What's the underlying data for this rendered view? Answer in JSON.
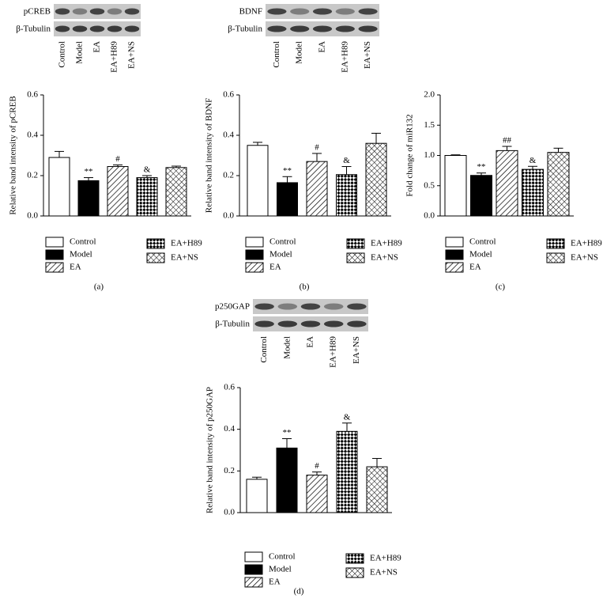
{
  "chart_data": [
    {
      "type": "bar",
      "panel": "(a)",
      "ylabel": "Relative band intensity of pCREB",
      "blot_labels": [
        "pCREB",
        "β-Tubulin"
      ],
      "categories": [
        "Control",
        "Model",
        "EA",
        "EA+H89",
        "EA+NS"
      ],
      "values": [
        0.29,
        0.175,
        0.245,
        0.19,
        0.24
      ],
      "errors": [
        0.03,
        0.015,
        0.008,
        0.01,
        0.007
      ],
      "annotations": [
        null,
        "**",
        "#",
        "&",
        null
      ],
      "fills": [
        "white",
        "black",
        "hatch",
        "checker",
        "cross"
      ],
      "ylim": [
        0,
        0.6
      ],
      "yticks": [
        {
          "value": 0,
          "label": "0.0"
        },
        {
          "value": 0.2,
          "label": "0.2"
        },
        {
          "value": 0.4,
          "label": "0.4"
        },
        {
          "value": 0.6,
          "label": "0.6"
        }
      ]
    },
    {
      "type": "bar",
      "panel": "(b)",
      "ylabel": "Relative band intensity of BDNF",
      "blot_labels": [
        "BDNF",
        "β-Tubulin"
      ],
      "categories": [
        "Control",
        "Model",
        "EA",
        "EA+H89",
        "EA+NS"
      ],
      "values": [
        0.35,
        0.165,
        0.27,
        0.205,
        0.36
      ],
      "errors": [
        0.015,
        0.03,
        0.04,
        0.04,
        0.05
      ],
      "annotations": [
        null,
        "**",
        "#",
        "&",
        null
      ],
      "fills": [
        "white",
        "black",
        "hatch",
        "checker",
        "cross"
      ],
      "ylim": [
        0,
        0.6
      ],
      "yticks": [
        {
          "value": 0,
          "label": "0.0"
        },
        {
          "value": 0.2,
          "label": "0.2"
        },
        {
          "value": 0.4,
          "label": "0.4"
        },
        {
          "value": 0.6,
          "label": "0.6"
        }
      ]
    },
    {
      "type": "bar",
      "panel": "(c)",
      "ylabel": "Fold change of miR132",
      "categories": [
        "Control",
        "Model",
        "EA",
        "EA+H89",
        "EA+NS"
      ],
      "values": [
        1.0,
        0.67,
        1.08,
        0.77,
        1.05
      ],
      "errors": [
        0.01,
        0.04,
        0.07,
        0.05,
        0.07
      ],
      "annotations": [
        null,
        "**",
        "##",
        "&",
        null
      ],
      "fills": [
        "white",
        "black",
        "hatch",
        "checker",
        "cross"
      ],
      "ylim": [
        0,
        2
      ],
      "yticks": [
        {
          "value": 0,
          "label": "0.0"
        },
        {
          "value": 0.5,
          "label": "0.5"
        },
        {
          "value": 1,
          "label": "1.0"
        },
        {
          "value": 1.5,
          "label": "1.5"
        },
        {
          "value": 2,
          "label": "2.0"
        }
      ]
    },
    {
      "type": "bar",
      "panel": "(d)",
      "ylabel": "Relative band intensity of p250GAP",
      "blot_labels": [
        "p250GAP",
        "β-Tubulin"
      ],
      "categories": [
        "Control",
        "Model",
        "EA",
        "EA+H89",
        "EA+NS"
      ],
      "values": [
        0.16,
        0.31,
        0.18,
        0.39,
        0.22
      ],
      "errors": [
        0.01,
        0.045,
        0.015,
        0.04,
        0.04
      ],
      "annotations": [
        null,
        "**",
        "#",
        "&",
        null
      ],
      "fills": [
        "white",
        "black",
        "hatch",
        "checker",
        "cross"
      ],
      "ylim": [
        0,
        0.6
      ],
      "yticks": [
        {
          "value": 0,
          "label": "0.0"
        },
        {
          "value": 0.2,
          "label": "0.2"
        },
        {
          "value": 0.4,
          "label": "0.4"
        },
        {
          "value": 0.6,
          "label": "0.6"
        }
      ]
    }
  ]
}
